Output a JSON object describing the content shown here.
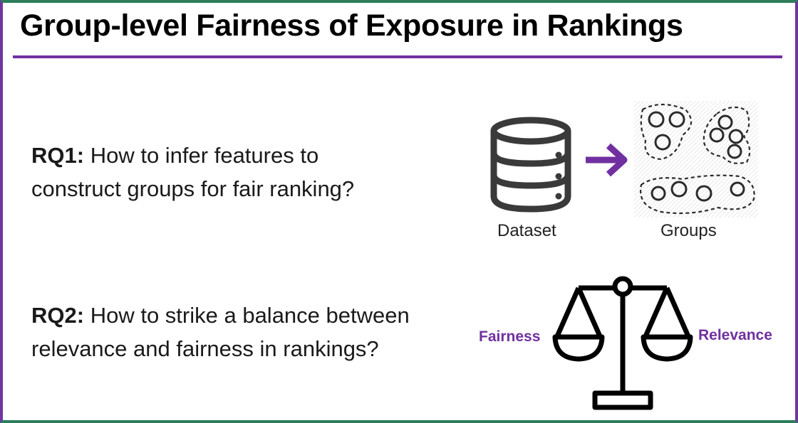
{
  "slide": {
    "title": "Group-level Fairness of Exposure in Rankings",
    "accent_color": "#7030a0",
    "rq1": {
      "label": "RQ1:",
      "line1": "How to infer features to",
      "line2": "construct groups for fair ranking?"
    },
    "rq2": {
      "label": "RQ2:",
      "line1": "How to strike a balance between",
      "line2": "relevance and fairness in rankings?"
    },
    "figure1": {
      "dataset_icon": "database-icon",
      "arrow_icon": "arrow-right-icon",
      "groups_icon": "clustered-groups-icon",
      "dataset_caption": "Dataset",
      "groups_caption": "Groups"
    },
    "figure2": {
      "scale_icon": "balance-scale-icon",
      "left_label": "Fairness",
      "right_label": "Relevance"
    }
  }
}
